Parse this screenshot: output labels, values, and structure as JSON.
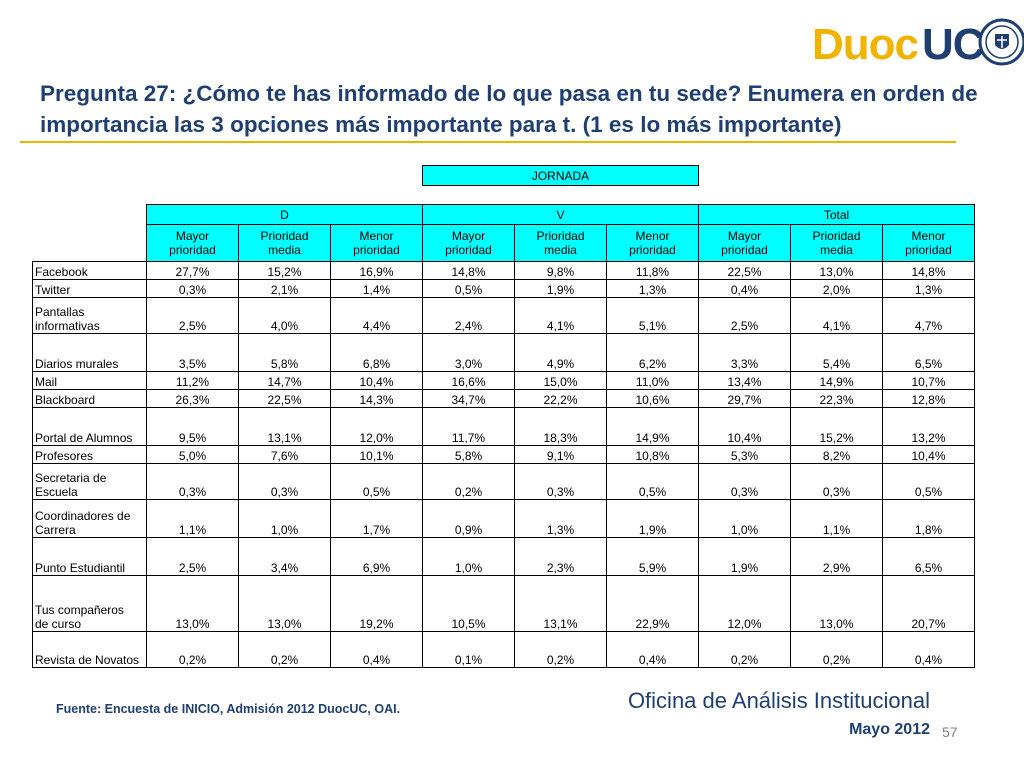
{
  "logo": {
    "part1": "Duoc",
    "part2": "UC"
  },
  "colors": {
    "navy": "#1f3f73",
    "gold": "#f0b400",
    "header_fill": "#00ffff"
  },
  "title": "Pregunta 27: ¿Cómo te has informado  de lo que pasa en tu sede? Enumera en orden de importancia las 3 opciones más importante para t. (1 es lo más importante)",
  "table": {
    "group_header": "JORNADA",
    "jornadas": [
      "D",
      "V",
      "Total"
    ],
    "sub_headers": [
      [
        "Mayor",
        "prioridad"
      ],
      [
        "Prioridad",
        "media"
      ],
      [
        "Menor",
        "prioridad"
      ]
    ],
    "rows": [
      {
        "label": [
          "Facebook"
        ],
        "values": [
          "27,7%",
          "15,2%",
          "16,9%",
          "14,8%",
          "9,8%",
          "11,8%",
          "22,5%",
          "13,0%",
          "14,8%"
        ]
      },
      {
        "label": [
          "Twitter"
        ],
        "values": [
          "0,3%",
          "2,1%",
          "1,4%",
          "0,5%",
          "1,9%",
          "1,3%",
          "0,4%",
          "2,0%",
          "1,3%"
        ]
      },
      {
        "label": [
          "Pantallas",
          "informativas"
        ],
        "values": [
          "2,5%",
          "4,0%",
          "4,4%",
          "2,4%",
          "4,1%",
          "5,1%",
          "2,5%",
          "4,1%",
          "4,7%"
        ]
      },
      {
        "label": [
          "Diarios murales"
        ],
        "values": [
          "3,5%",
          "5,8%",
          "6,8%",
          "3,0%",
          "4,9%",
          "6,2%",
          "3,3%",
          "5,4%",
          "6,5%"
        ]
      },
      {
        "label": [
          "Mail"
        ],
        "values": [
          "11,2%",
          "14,7%",
          "10,4%",
          "16,6%",
          "15,0%",
          "11,0%",
          "13,4%",
          "14,9%",
          "10,7%"
        ]
      },
      {
        "label": [
          "Blackboard"
        ],
        "values": [
          "26,3%",
          "22,5%",
          "14,3%",
          "34,7%",
          "22,2%",
          "10,6%",
          "29,7%",
          "22,3%",
          "12,8%"
        ]
      },
      {
        "label": [
          "Portal de Alumnos"
        ],
        "values": [
          "9,5%",
          "13,1%",
          "12,0%",
          "11,7%",
          "18,3%",
          "14,9%",
          "10,4%",
          "15,2%",
          "13,2%"
        ]
      },
      {
        "label": [
          "Profesores"
        ],
        "values": [
          "5,0%",
          "7,6%",
          "10,1%",
          "5,8%",
          "9,1%",
          "10,8%",
          "5,3%",
          "8,2%",
          "10,4%"
        ]
      },
      {
        "label": [
          "Secretaria de",
          "Escuela"
        ],
        "values": [
          "0,3%",
          "0,3%",
          "0,5%",
          "0,2%",
          "0,3%",
          "0,5%",
          "0,3%",
          "0,3%",
          "0,5%"
        ]
      },
      {
        "label": [
          "Coordinadores de",
          "Carrera"
        ],
        "values": [
          "1,1%",
          "1,0%",
          "1,7%",
          "0,9%",
          "1,3%",
          "1,9%",
          "1,0%",
          "1,1%",
          "1,8%"
        ]
      },
      {
        "label": [
          "Punto Estudiantil"
        ],
        "values": [
          "2,5%",
          "3,4%",
          "6,9%",
          "1,0%",
          "2,3%",
          "5,9%",
          "1,9%",
          "2,9%",
          "6,5%"
        ]
      },
      {
        "label": [
          "Tus compañeros",
          "de curso"
        ],
        "values": [
          "13,0%",
          "13,0%",
          "19,2%",
          "10,5%",
          "13,1%",
          "22,9%",
          "12,0%",
          "13,0%",
          "20,7%"
        ]
      },
      {
        "label": [
          "Revista de Novatos"
        ],
        "values": [
          "0,2%",
          "0,2%",
          "0,4%",
          "0,1%",
          "0,2%",
          "0,4%",
          "0,2%",
          "0,2%",
          "0,4%"
        ]
      }
    ]
  },
  "footer": {
    "source": "Fuente: Encuesta de INICIO, Admisión 2012 DuocUC, OAI.",
    "office": "Oficina de Análisis Institucional",
    "date": "Mayo 2012",
    "page": "57"
  }
}
